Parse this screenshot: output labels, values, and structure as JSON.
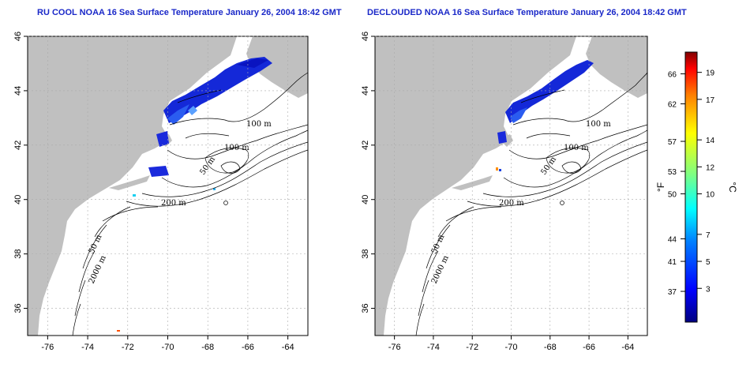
{
  "panels": [
    {
      "title": "RU COOL NOAA 16 Sea Surface Temperature January 26, 2004 18:42 GMT",
      "x_ticks": [
        "-76",
        "-74",
        "-72",
        "-70",
        "-68",
        "-66",
        "-64"
      ],
      "y_ticks": [
        "46",
        "44",
        "42",
        "40",
        "38",
        "36"
      ],
      "contour_labels": [
        "100 m",
        "100 m",
        "50 m",
        "200 m",
        "50 m",
        "2000 m"
      ]
    },
    {
      "title": "DECLOUDED NOAA 16 Sea Surface Temperature January 26, 2004 18:42 GMT",
      "x_ticks": [
        "-76",
        "-74",
        "-72",
        "-70",
        "-68",
        "-66",
        "-64"
      ],
      "y_ticks": [
        "46",
        "44",
        "42",
        "40",
        "38",
        "36"
      ],
      "contour_labels": [
        "100 m",
        "100 m",
        "50 m",
        "200 m",
        "50 m",
        "2000 m"
      ]
    }
  ],
  "colorbar": {
    "fahrenheit_ticks": [
      "66",
      "62",
      "57",
      "53",
      "50",
      "44",
      "41",
      "37"
    ],
    "celsius_ticks": [
      "19",
      "17",
      "14",
      "12",
      "10",
      "7",
      "5",
      "3"
    ],
    "fahrenheit_unit": "°F",
    "celsius_unit": "°C",
    "colors": [
      "#000080",
      "#0000ff",
      "#0080ff",
      "#00ffff",
      "#80ff80",
      "#ffff00",
      "#ff8000",
      "#ff0000",
      "#800000"
    ]
  },
  "colors": {
    "land": "#c0c0c0",
    "ocean": "#ffffff",
    "title": "#1a28c8",
    "sst_dark": "#0a1ad0",
    "sst_mid": "#2a50f0",
    "sst_light": "#5a9cff"
  }
}
